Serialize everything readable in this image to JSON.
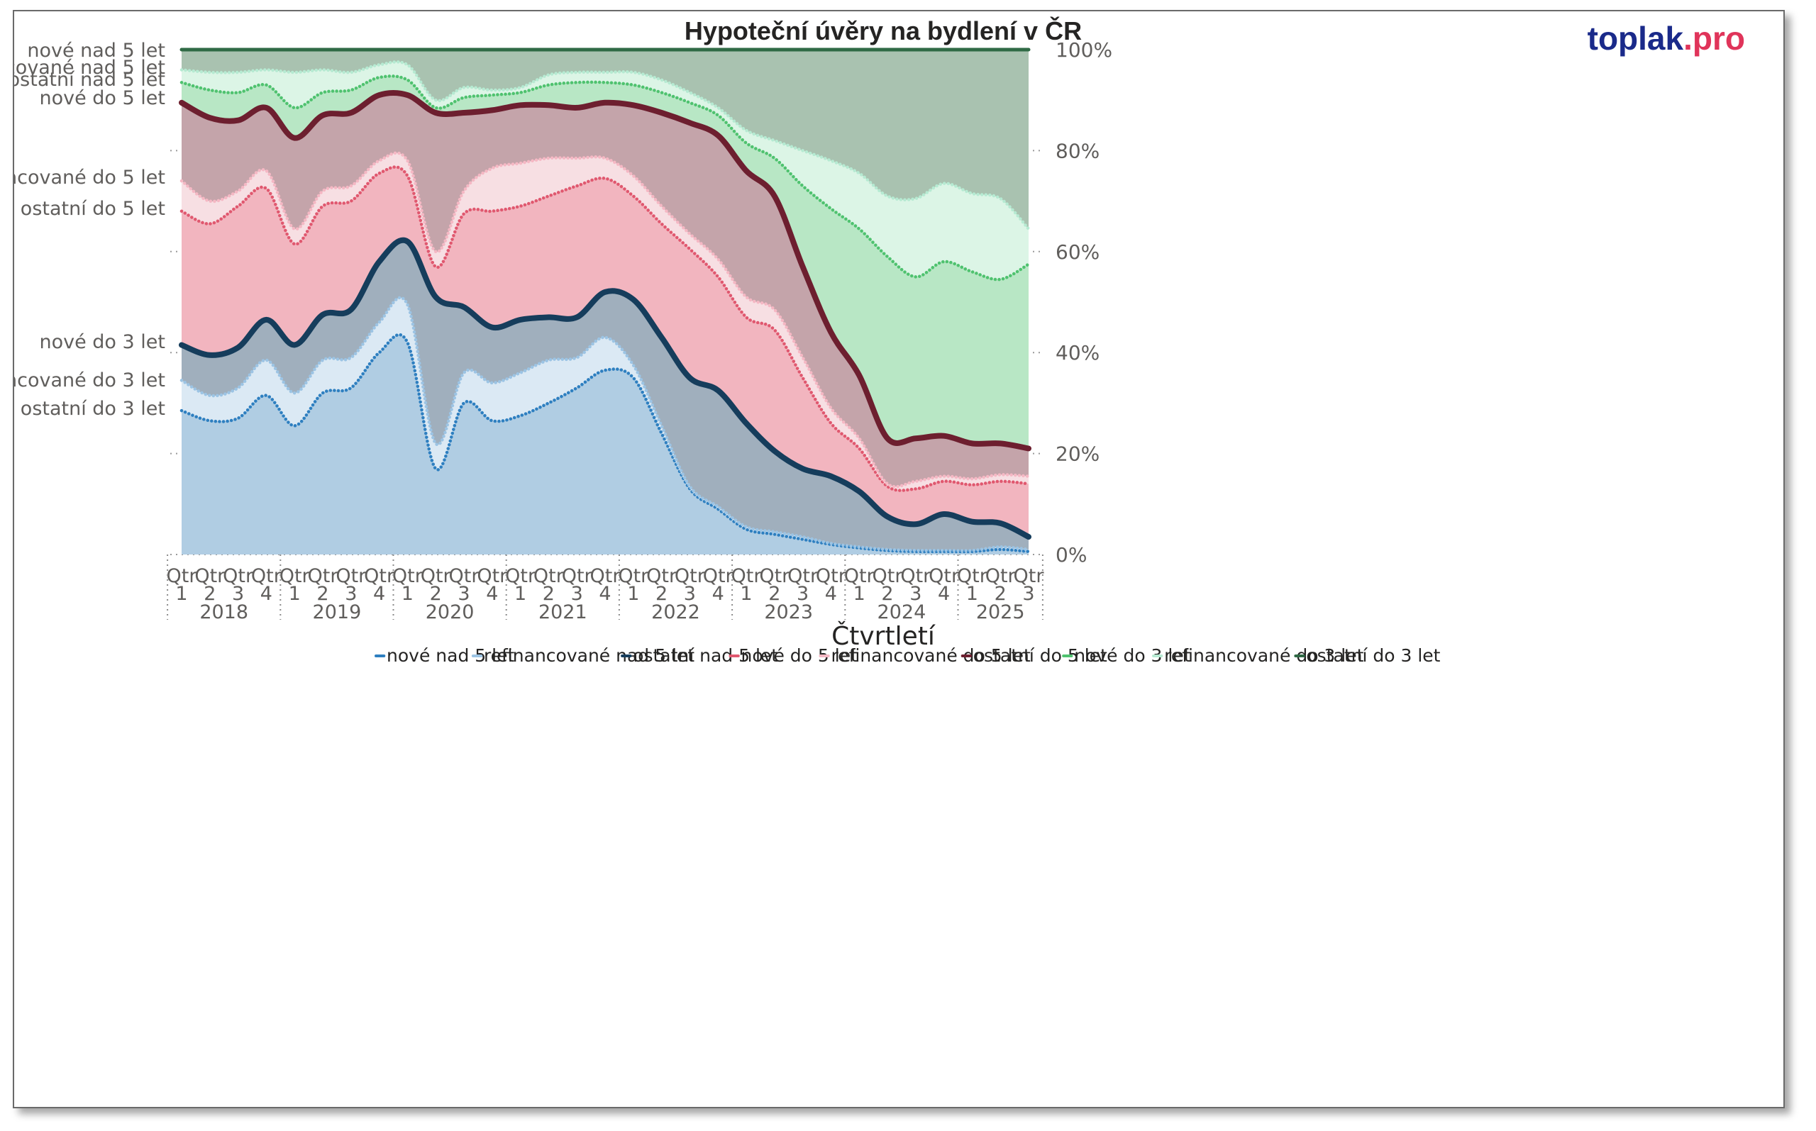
{
  "title": "Hypoteční úvěry na bydlení v ČR",
  "brand": {
    "name": "toplak",
    "suffix": ".pro",
    "name_color": "#1a2a8a",
    "suffix_color": "#e0345a"
  },
  "chart_data": {
    "type": "area",
    "stacked": true,
    "title": "Hypoteční úvěry na bydlení v ČR",
    "xlabel": "Čtvrtletí",
    "ylabel": "",
    "ylim": [
      0,
      100
    ],
    "yticks": [
      "0%",
      "20%",
      "40%",
      "60%",
      "80%",
      "100%"
    ],
    "years": [
      "2018",
      "2019",
      "2020",
      "2021",
      "2022",
      "2023",
      "2024",
      "2025"
    ],
    "quarter_prefix": "Qtr",
    "quarters": [
      "1",
      "2",
      "3",
      "4",
      "1",
      "2",
      "3",
      "4",
      "1",
      "2",
      "3",
      "4",
      "1",
      "2",
      "3",
      "4",
      "1",
      "2",
      "3",
      "4",
      "1",
      "2",
      "3",
      "4",
      "1",
      "2",
      "3",
      "4",
      "1",
      "2",
      "3"
    ],
    "legend_position": "bottom",
    "grid": true,
    "series": [
      {
        "name": "nové nad 5 let",
        "color": "#2e7fc0",
        "fill": "#b0cde3",
        "line": "dotted",
        "cum": [
          28.5,
          26.5,
          27,
          31.5,
          25.5,
          32,
          33,
          40,
          42,
          17,
          30,
          26.5,
          27.5,
          30,
          33,
          36.5,
          35,
          24,
          13,
          9,
          5,
          4,
          3,
          2,
          1.3,
          0.8,
          0.6,
          0.6,
          0.6,
          1,
          0.6
        ]
      },
      {
        "name": "refinancované nad 5 let",
        "color": "#9cc4e4",
        "fill": "#dbe9f4",
        "line": "dotted",
        "cum": [
          34.5,
          31.5,
          33,
          38.5,
          32,
          38.5,
          39,
          46,
          49.5,
          22,
          36,
          34,
          36,
          38.5,
          39,
          43,
          37.5,
          25.5,
          13.5,
          9.5,
          5.5,
          4.5,
          3.5,
          2.2,
          1.5,
          1,
          0.8,
          0.8,
          0.8,
          1.5,
          1
        ]
      },
      {
        "name": "ostatní nad 5 let",
        "color": "#163d5c",
        "fill": "#a0afbd",
        "line": "solid",
        "cum": [
          41.5,
          39.5,
          41,
          46.5,
          41.5,
          47.5,
          48.5,
          58,
          62,
          51,
          49,
          45,
          46.5,
          47,
          47,
          52,
          50.5,
          43,
          35,
          32.5,
          26,
          20.5,
          17,
          15.5,
          12.5,
          7.5,
          6,
          8,
          6.5,
          6.2,
          3.5
        ]
      },
      {
        "name": "nové do 5 let",
        "color": "#e0586f",
        "fill": "#f2b5bf",
        "line": "dotted",
        "cum": [
          68,
          65.5,
          69,
          72.5,
          61.5,
          69,
          70,
          75.5,
          75,
          57,
          67.5,
          68,
          69,
          71,
          73,
          74.5,
          71,
          65.5,
          60.5,
          55,
          47,
          44.5,
          35,
          26,
          21,
          13.5,
          13,
          14.5,
          13.8,
          14.5,
          14
        ]
      },
      {
        "name": "refinancované do 5 let",
        "color": "#f5b8c4",
        "fill": "#f7dfe3",
        "line": "dotted",
        "cum": [
          74,
          70,
          72,
          76,
          64.5,
          72,
          73,
          78,
          78,
          60,
          72,
          76.5,
          77.5,
          78.5,
          78.5,
          78.5,
          75,
          69,
          63.5,
          58.5,
          51,
          48.5,
          39,
          29,
          23,
          14,
          14.5,
          15.5,
          15,
          15.8,
          15.5
        ]
      },
      {
        "name": "ostatní do 5 let",
        "color": "#6d1f2f",
        "fill": "#c4a4aa",
        "line": "solid",
        "cum": [
          89.5,
          86.5,
          86,
          88.5,
          82.5,
          87,
          87.5,
          91,
          91,
          87.5,
          87.5,
          88,
          89,
          89,
          88.5,
          89.5,
          89,
          87.5,
          85.5,
          83,
          76,
          71,
          57,
          44,
          35.5,
          23,
          23,
          23.5,
          22,
          22,
          21
        ]
      },
      {
        "name": "nové do 3 let",
        "color": "#4fc26f",
        "fill": "#b8e7c5",
        "line": "dotted",
        "cum": [
          93.5,
          92,
          91.5,
          93,
          88.5,
          91.5,
          92,
          94.5,
          94,
          88.5,
          90.5,
          91,
          91.5,
          93,
          93.5,
          93.5,
          93,
          91.5,
          89.5,
          87,
          81.5,
          78.5,
          73,
          68.5,
          64.5,
          59,
          55,
          58,
          56,
          54.5,
          57.5
        ]
      },
      {
        "name": "refinancované do 3 let",
        "color": "#b6ead2",
        "fill": "#dcf5e6",
        "line": "dotted",
        "cum": [
          96,
          95.5,
          95.5,
          96,
          95.5,
          96,
          95.5,
          97,
          97,
          90,
          92.5,
          92,
          92.5,
          95,
          95.5,
          95.5,
          95.5,
          94,
          91.5,
          88.5,
          84,
          82,
          80,
          78,
          75.5,
          71,
          70.5,
          73.5,
          71.5,
          70.5,
          64.5
        ]
      },
      {
        "name": "ostatní do 3 let",
        "color": "#2f6a45",
        "fill": "#a9c2b0",
        "line": "solid",
        "cum": [
          100,
          100,
          100,
          100,
          100,
          100,
          100,
          100,
          100,
          100,
          100,
          100,
          100,
          100,
          100,
          100,
          100,
          100,
          100,
          100,
          100,
          100,
          100,
          100,
          100,
          100,
          100,
          100,
          100,
          100,
          100
        ]
      }
    ]
  }
}
